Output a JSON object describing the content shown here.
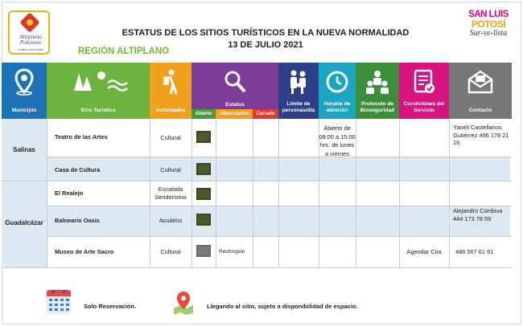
{
  "header": {
    "logo_left": {
      "line1": "Altiplano",
      "line2": "Potosino",
      "line3": "Gobierno del Estado"
    },
    "title_line1": "ESTATUS DE LOS SITIOS TURÍSTICOS EN LA NUEVA NORMALIDAD",
    "title_line2": "13 DE JULIO 2021",
    "region": "REGIÓN ALTIPLANO",
    "logo_right": {
      "l1": "SAN LUIS",
      "l2": "POTOSÍ",
      "l3": "Sur-ve-lista"
    }
  },
  "columns": {
    "municipio": "Municipio",
    "sitio": "Sitio Turístico",
    "actividades": "Actividades",
    "estatus": "Estatus",
    "abierto": "Abierto",
    "observacion": "Observación",
    "cerrado": "Cerrado",
    "limite": "Límite de personas/día",
    "horario": "Horario de atención",
    "protocolo": "Protocolo de Bioseguridad",
    "condiciones": "Condiciones del Servicio",
    "contacto": "Contacto"
  },
  "colors": {
    "municipio": "#1e73b8",
    "sitio": "#6cb33f",
    "actividades": "#f0a01a",
    "estatus": "#7b3d96",
    "limite": "#2d3f88",
    "horario": "#1aa6c0",
    "protocolo": "#3c8e3a",
    "condiciones": "#d8127f",
    "contacto": "#777777",
    "abierto": "#4a9a3c",
    "observacion": "#f0a01a",
    "cerrado": "#e03a2f",
    "row_alt": "#dce8f2"
  },
  "icons": [
    "map-pin-icon",
    "trees-sun-icon",
    "hiker-icon",
    "magnifier-icon",
    "family-icon",
    "clock-icon",
    "people-shield-icon",
    "checklist-icon",
    "envelope-icon"
  ],
  "municipios": [
    "Salinas",
    "Guadalcázar"
  ],
  "rows": [
    {
      "sitio": "Teatro de las Artes",
      "actividades": "Cultural",
      "status": "abierto",
      "observacion": "",
      "contacto": "Yaneli Castellanos Gutiérrez 496 178 21 16"
    },
    {
      "sitio": "Casa de Cultura",
      "actividades": "Cultural",
      "status": "abierto",
      "observacion": "",
      "contacto": ""
    },
    {
      "sitio": "El Realejo",
      "actividades": "Escalada Senderismo",
      "status": "abierto",
      "observacion": "",
      "contacto": ""
    },
    {
      "sitio": "Balneario Oasis",
      "actividades": "Acuático",
      "status": "abierto",
      "observacion": "",
      "contacto": "Alejandro Córdova 444 173 78 59"
    },
    {
      "sitio": "Museo de Arte Sacro",
      "actividades": "Cultural",
      "status": "observacion",
      "observacion": "Restringido",
      "condiciones": "Agendar Cita",
      "contacto": "486 567 61 91"
    }
  ],
  "horario_salinas": "Abierto de 08:00 a 15:00 hrs. de lunes a viernes",
  "footer": {
    "reservacion": "Solo Reservación.",
    "llegando": "Llegando al sitio, sujeto a disponibilidad de espacio."
  }
}
